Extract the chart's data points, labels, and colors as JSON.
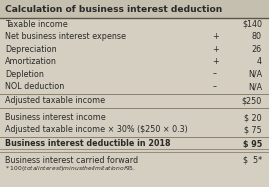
{
  "title": "Calculation of business interest deduction",
  "bg_color": "#d4cfc0",
  "title_bg_color": "#c5bfb0",
  "rows": [
    {
      "label": "Taxable income",
      "sign": "",
      "value": "$140"
    },
    {
      "label": "Net business interest expense",
      "sign": "+",
      "value": "80"
    },
    {
      "label": "Depreciation",
      "sign": "+",
      "value": "26"
    },
    {
      "label": "Amortization",
      "sign": "+",
      "value": "4"
    },
    {
      "label": "Depletion",
      "sign": "–",
      "value": "N/A"
    },
    {
      "label": "NOL deduction",
      "sign": "–",
      "value": "N/A"
    }
  ],
  "subtotal_row": {
    "label": "Adjusted taxable income",
    "value": "$250"
  },
  "section2_rows": [
    {
      "label": "Business interest income",
      "value": "$ 20"
    },
    {
      "label": "Adjusted taxable income × 30% ($250 × 0.3)",
      "value": "$ 75"
    }
  ],
  "bold_row": {
    "label": "Business interest deductible in 2018",
    "value": "$ 95"
  },
  "carryforward_row": {
    "label": "Business interest carried forward",
    "value": "$  5*"
  },
  "footnote": "* $100 (total interest) minus the limitation of $95.",
  "text_color": "#2a2a2a",
  "line_color": "#8a8070",
  "font_size": 5.8
}
